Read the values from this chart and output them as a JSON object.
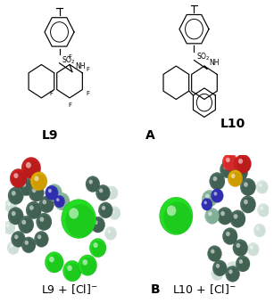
{
  "bg_color": "#ffffff",
  "label_A": "A",
  "label_B": "B",
  "label_L9": "L9",
  "label_L10": "L10",
  "label_fontsize": 10,
  "figsize": [
    3.07,
    3.4
  ],
  "dpi": 100,
  "c_color": "#4a6e5e",
  "c_dark": "#2a3e30",
  "c_light": "#8ab8a0",
  "h_color": "#d8e8e0",
  "cl_color": "#22dd22",
  "cl_dark": "#119911",
  "o_color": "#cc2020",
  "o_dark": "#881010",
  "s_color": "#ddaa00",
  "s_dark": "#aa7700",
  "n_color": "#3333bb",
  "n_dark": "#222288"
}
